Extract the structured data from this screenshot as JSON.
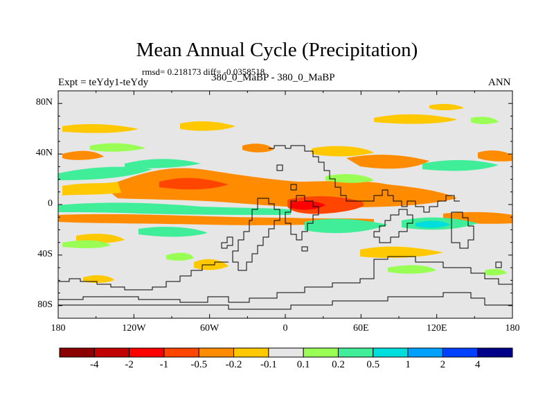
{
  "title": "Mean Annual Cycle (Precipitation)",
  "stats": "rmsd= 0.218173 diff= -0.0358518",
  "experiment": "Expt = teYdy1-teYdy",
  "cases": "380_0_MaBP - 380_0_MaBP",
  "season": "ANN",
  "y_axis": {
    "ticks": [
      {
        "lat": 80,
        "label": "80N"
      },
      {
        "lat": 40,
        "label": "40N"
      },
      {
        "lat": 0,
        "label": "0"
      },
      {
        "lat": -40,
        "label": "40S"
      },
      {
        "lat": -80,
        "label": "80S"
      }
    ]
  },
  "x_axis": {
    "ticks": [
      {
        "lon": -180,
        "label": "180"
      },
      {
        "lon": -120,
        "label": "120W"
      },
      {
        "lon": -60,
        "label": "60W"
      },
      {
        "lon": 0,
        "label": "0"
      },
      {
        "lon": 60,
        "label": "60E"
      },
      {
        "lon": 120,
        "label": "120E"
      },
      {
        "lon": 180,
        "label": "180"
      }
    ]
  },
  "colorbar": {
    "colors": [
      "#8b0000",
      "#c30000",
      "#ff0000",
      "#ff4500",
      "#ff8c00",
      "#ffc800",
      "#e6e6e6",
      "#99ff55",
      "#40ee99",
      "#00dddd",
      "#00a0ff",
      "#0040ff",
      "#000088"
    ],
    "labels": [
      "-4",
      "-2",
      "-1",
      "-0.5",
      "-0.2",
      "-0.1",
      "0.1",
      "0.2",
      "0.5",
      "1",
      "2",
      "4"
    ]
  }
}
